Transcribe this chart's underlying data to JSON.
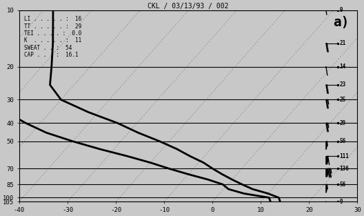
{
  "title": "CKL / 03/13/93 / 002",
  "label_a": "a)",
  "xlim": [
    -40,
    30
  ],
  "bg_color": "#c8c8c8",
  "indices_lines": [
    "LI . . . . . :  16",
    "TT . . . . . :  29",
    "TEI . . . . :  0.0",
    "K  . . . . . :  11",
    "SWEAT . . :  54",
    "CAP . . . :  16.1"
  ],
  "pressure_labels": [
    10,
    20,
    30,
    40,
    50,
    70,
    85,
    100,
    105
  ],
  "pressure_hPa": [
    100,
    200,
    300,
    400,
    500,
    700,
    850,
    1000,
    1050
  ],
  "xticks": [
    -40,
    -30,
    -20,
    -10,
    0,
    10,
    20,
    30
  ],
  "skew_amount": 35,
  "iso_temps": [
    -80,
    -70,
    -60,
    -50,
    -40,
    -30,
    -20,
    -10,
    0,
    10,
    20,
    30,
    40
  ],
  "temp_profile_p": [
    1050,
    1000,
    950,
    900,
    850,
    800,
    750,
    700,
    650,
    600,
    550,
    500,
    450,
    400,
    350,
    300,
    250,
    200,
    150,
    100
  ],
  "temp_profile_T": [
    14,
    13,
    10,
    6,
    3,
    0,
    -3,
    -6,
    -9,
    -13,
    -17,
    -22,
    -28,
    -34,
    -42,
    -50,
    -55,
    -58,
    -62,
    -68
  ],
  "dewp_profile_p": [
    1050,
    1000,
    950,
    900,
    850,
    800,
    750,
    700,
    650,
    600,
    550,
    500,
    450,
    400,
    350,
    300,
    250,
    200,
    150,
    100
  ],
  "dewp_profile_T": [
    12,
    11,
    5,
    1,
    -1,
    -5,
    -10,
    -15,
    -20,
    -26,
    -33,
    -40,
    -47,
    -53,
    -59,
    -63,
    -66,
    -68,
    -72,
    -78
  ],
  "wind_barb_data": [
    {
      "p": 1050,
      "spd": 9,
      "dir": 170
    },
    {
      "p": 850,
      "spd": 56,
      "dir": 200
    },
    {
      "p": 700,
      "spd": 136,
      "dir": 215
    },
    {
      "p": 600,
      "spd": 111,
      "dir": 220
    },
    {
      "p": 500,
      "spd": 56,
      "dir": 230
    },
    {
      "p": 400,
      "spd": 29,
      "dir": 240
    },
    {
      "p": 300,
      "spd": 25,
      "dir": 250
    },
    {
      "p": 250,
      "spd": 23,
      "dir": 255
    },
    {
      "p": 200,
      "spd": 14,
      "dir": 260
    },
    {
      "p": 150,
      "spd": 21,
      "dir": 265
    },
    {
      "p": 100,
      "spd": 9,
      "dir": 270
    }
  ]
}
